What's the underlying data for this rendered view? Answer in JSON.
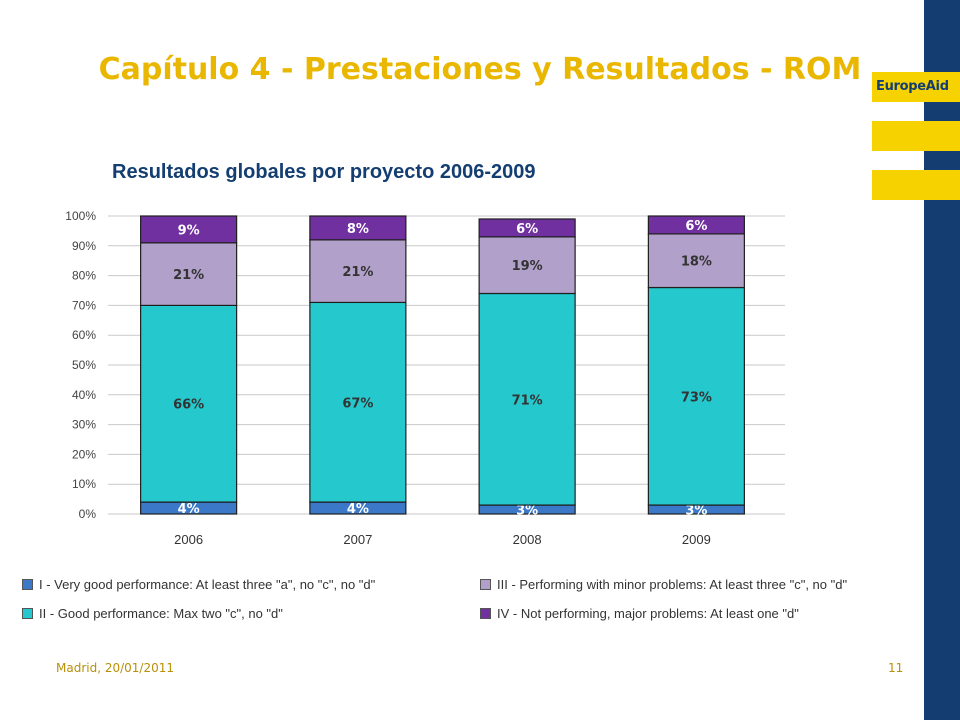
{
  "brand": {
    "name": "EuropeAid",
    "accent": "#f6d200",
    "sidebar_color": "#143e72"
  },
  "slide": {
    "title": "Capítulo 4 - Prestaciones y Resultados - ROM",
    "subtitle": "Resultados globales por proyecto 2006-2009",
    "footer": "Madrid, 20/01/2011",
    "page_number": "11"
  },
  "chart_data": {
    "type": "bar",
    "stacked": true,
    "categories": [
      "2006",
      "2007",
      "2008",
      "2009"
    ],
    "ylim": [
      0,
      100
    ],
    "y_ticks": [
      "0%",
      "10%",
      "20%",
      "30%",
      "40%",
      "50%",
      "60%",
      "70%",
      "80%",
      "90%",
      "100%"
    ],
    "grid": true,
    "legend_position": "bottom",
    "series": [
      {
        "name": "I - Very good performance: At least three \"a\", no \"c\", no \"d\"",
        "color": "#3b78c8",
        "values": [
          4,
          4,
          3,
          3
        ],
        "labels": [
          "4%",
          "4%",
          "3%",
          "3%"
        ]
      },
      {
        "name": "II - Good performance: Max two \"c\", no \"d\"",
        "color": "#25c8cc",
        "values": [
          66,
          67,
          71,
          73
        ],
        "labels": [
          "66%",
          "67%",
          "71%",
          "73%"
        ]
      },
      {
        "name": "III - Performing with minor problems: At least three \"c\", no \"d\"",
        "color": "#b1a0c9",
        "values": [
          21,
          21,
          19,
          18
        ],
        "labels": [
          "21%",
          "21%",
          "19%",
          "18%"
        ]
      },
      {
        "name": "IV - Not performing, major problems: At least one \"d\"",
        "color": "#7030a0",
        "values": [
          9,
          8,
          6,
          6
        ],
        "labels": [
          "9%",
          "8%",
          "6%",
          "6%"
        ]
      }
    ]
  }
}
